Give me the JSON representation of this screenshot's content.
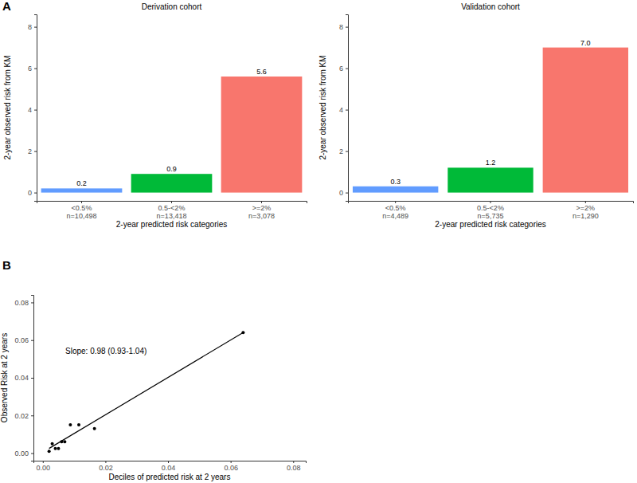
{
  "chart_data": [
    {
      "type": "bar",
      "title": "Derivation cohort",
      "annotations": [
        "A"
      ],
      "x_label": "2-year predicted risk categories",
      "y_label": "2-year observed risk from KM",
      "categories": [
        "<0.5%\nn=10,498",
        "0.5-<2%\nn=13,418",
        ">=2%\nn=3,078"
      ],
      "values": [
        0.2,
        0.9,
        5.6
      ],
      "colors": [
        "#619CFF",
        "#00BA38",
        "#F8766D"
      ],
      "data_labels": true,
      "grid": false,
      "ylim": [
        -0.4,
        8.6
      ],
      "yticks": [
        0,
        2,
        4,
        6,
        8
      ]
    },
    {
      "type": "bar",
      "title": "Validation cohort",
      "x_label": "2-year predicted risk categories",
      "y_label": "2-year observed risk from KM",
      "categories": [
        "<0.5%\nn=4,489",
        "0.5-<2%\nn=5,735",
        ">=2%\nn=1,290"
      ],
      "values": [
        0.3,
        1.2,
        7.0
      ],
      "value_labels": [
        "0.3",
        "1.2",
        "7.0"
      ],
      "colors": [
        "#619CFF",
        "#00BA38",
        "#F8766D"
      ],
      "data_labels": true,
      "grid": false,
      "ylim": [
        -0.4,
        8.6
      ],
      "yticks": [
        0,
        2,
        4,
        6,
        8
      ]
    },
    {
      "type": "scatter",
      "annotations": [
        "B",
        "Slope: 0.98 (0.93-1.04)"
      ],
      "x_label": "Deciles of predicted risk at 2 years",
      "y_label": "Observed Risk at 2 years",
      "grid": false,
      "series": [
        {
          "type": "scatter",
          "color": "#000000",
          "marker": "circle",
          "x": [
            0.002,
            0.003,
            0.004,
            0.005,
            0.006,
            0.007,
            0.0088,
            0.0115,
            0.0165,
            0.064
          ],
          "values": [
            0.001,
            0.005,
            0.0025,
            0.0025,
            0.006,
            0.006,
            0.015,
            0.015,
            0.013,
            0.064
          ]
        },
        {
          "type": "line",
          "color": "#000000",
          "line_style": "solid",
          "x": [
            0.002,
            0.064
          ],
          "values": [
            0.0025,
            0.064
          ]
        }
      ],
      "xlim": [
        -0.003,
        0.084
      ],
      "ylim": [
        -0.004,
        0.084
      ],
      "xticks": [
        {
          "value": 0,
          "label": "0.00"
        },
        0.02,
        0.04,
        0.06,
        0.08
      ],
      "yticks": [
        {
          "value": 0,
          "label": "0.00"
        },
        0.02,
        0.04,
        0.06,
        0.08
      ]
    }
  ]
}
